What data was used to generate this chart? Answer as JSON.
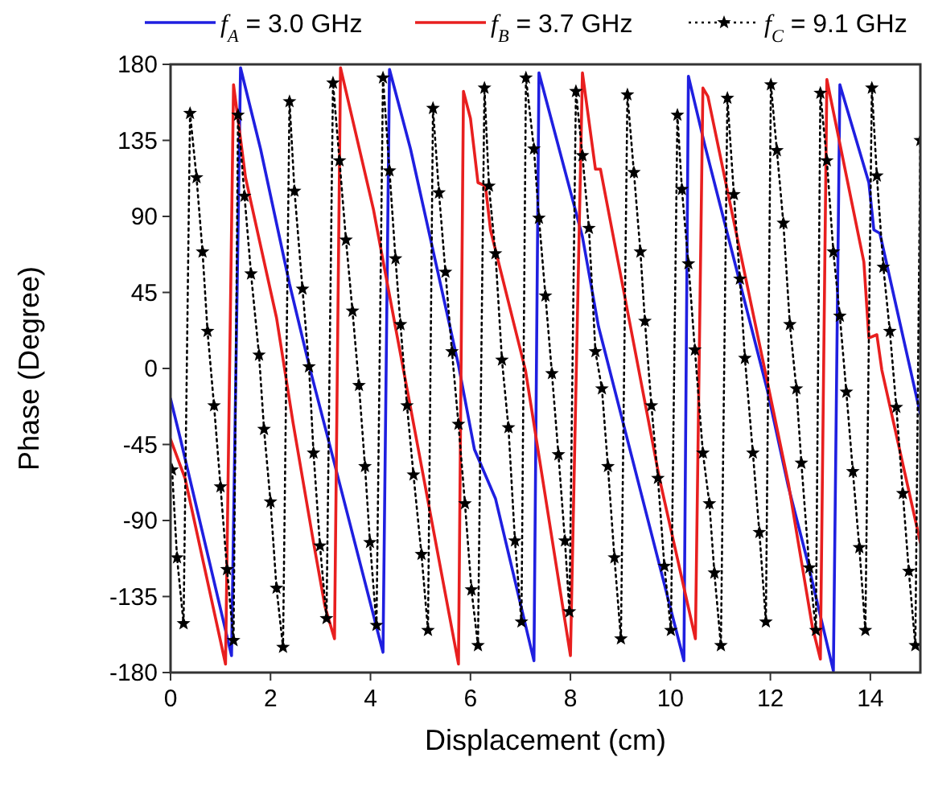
{
  "chart_data": {
    "type": "line",
    "xlabel": "Displacement (cm)",
    "ylabel": "Phase (Degree)",
    "xlim": [
      0,
      15
    ],
    "xticks": [
      0,
      2,
      4,
      6,
      8,
      10,
      12,
      14
    ],
    "ylim": [
      -180,
      180
    ],
    "yticks": [
      -180,
      -135,
      -90,
      -45,
      0,
      45,
      90,
      135,
      180
    ],
    "grid": false,
    "legend": "top",
    "series": [
      {
        "name": "f$_{A}$ = 3.0 GHz",
        "color": "#1f1fe0",
        "marker": "none",
        "line_style": "solid",
        "x": [
          0,
          0.2,
          1.22,
          1.4,
          1.8,
          2.38,
          2.77,
          3.19,
          4.25,
          4.38,
          4.8,
          5.76,
          6.08,
          6.5,
          7.27,
          7.37,
          8.24,
          8.56,
          10.27,
          10.36,
          10.69,
          11.94,
          12.36,
          12.75,
          13.26,
          13.39,
          13.97,
          14.07,
          14.19,
          15
        ],
        "values": [
          -18,
          -42,
          -170,
          178,
          130,
          50,
          2,
          -46,
          -168,
          177,
          130,
          2,
          -48,
          -77,
          -173,
          175,
          78,
          25,
          -173,
          173,
          132,
          -13,
          -70,
          -115,
          -179,
          168,
          110,
          82,
          80,
          -27
        ]
      },
      {
        "name": "f$_{B}$ = 3.7 GHz",
        "color": "#e81f1f",
        "marker": "none",
        "line_style": "solid",
        "x": [
          0,
          0.29,
          1.1,
          1.26,
          1.5,
          2.12,
          2.45,
          2.86,
          3.09,
          3.28,
          3.4,
          4.06,
          4.8,
          5.76,
          5.86,
          6.0,
          6.15,
          6.3,
          6.4,
          7.1,
          8.0,
          8.24,
          8.5,
          8.6,
          9.78,
          10.5,
          10.65,
          10.75,
          11.17,
          11.94,
          12.36,
          12.84,
          13.0,
          13.13,
          13.87,
          13.97,
          14.13,
          14.23,
          15
        ],
        "values": [
          -42,
          -65,
          -175,
          168,
          113,
          30,
          -32,
          -103,
          -141,
          -160,
          178,
          94,
          -23,
          -175,
          164,
          148,
          110,
          108,
          82,
          -1,
          -170,
          175,
          118,
          118,
          -65,
          -160,
          166,
          161,
          101,
          -8,
          -68,
          -153,
          -172,
          171,
          63,
          18,
          20,
          -1,
          -103
        ]
      },
      {
        "name": "f$_{C}$ = 9.1 GHz",
        "color": "#000000",
        "marker": "star",
        "line_style": "dotted",
        "x": [
          0.03,
          0.13,
          0.26,
          0.39,
          0.52,
          0.64,
          0.74,
          0.87,
          1.0,
          1.13,
          1.26,
          1.35,
          1.48,
          1.61,
          1.77,
          1.87,
          2.0,
          2.12,
          2.25,
          2.38,
          2.48,
          2.64,
          2.77,
          2.86,
          2.99,
          3.12,
          3.25,
          3.38,
          3.51,
          3.64,
          3.77,
          3.89,
          3.99,
          4.12,
          4.25,
          4.38,
          4.5,
          4.6,
          4.73,
          4.86,
          5.02,
          5.15,
          5.25,
          5.37,
          5.5,
          5.63,
          5.76,
          5.89,
          6.02,
          6.15,
          6.28,
          6.37,
          6.5,
          6.63,
          6.76,
          6.89,
          7.02,
          7.11,
          7.27,
          7.37,
          7.5,
          7.63,
          7.76,
          7.89,
          7.98,
          8.11,
          8.24,
          8.37,
          8.5,
          8.63,
          8.75,
          8.88,
          9.01,
          9.14,
          9.27,
          9.4,
          9.49,
          9.62,
          9.75,
          9.88,
          10.01,
          10.14,
          10.23,
          10.36,
          10.49,
          10.65,
          10.78,
          10.88,
          11.01,
          11.14,
          11.27,
          11.39,
          11.49,
          11.65,
          11.78,
          11.91,
          12.01,
          12.13,
          12.26,
          12.39,
          12.52,
          12.62,
          12.78,
          12.91,
          13.0,
          13.13,
          13.26,
          13.39,
          13.52,
          13.65,
          13.78,
          13.9,
          14.03,
          14.13,
          14.26,
          14.39,
          14.52,
          14.65,
          14.77,
          14.9,
          15.0
        ],
        "values": [
          -60,
          -112,
          -151,
          151,
          113,
          69,
          22,
          -22,
          -70,
          -119,
          -161,
          150,
          102,
          56,
          8,
          -36,
          -79,
          -130,
          -165,
          158,
          105,
          47,
          1,
          -50,
          -105,
          -148,
          169,
          123,
          76,
          34,
          -10,
          -58,
          -103,
          -152,
          172,
          117,
          65,
          26,
          -22,
          -63,
          -110,
          -155,
          154,
          104,
          57,
          10,
          -33,
          -80,
          -131,
          -164,
          166,
          108,
          68,
          5,
          -35,
          -102,
          -150,
          172,
          130,
          89,
          43,
          -3,
          -51,
          -102,
          -144,
          164,
          126,
          83,
          10,
          -12,
          -58,
          -112,
          -160,
          162,
          116,
          69,
          28,
          -22,
          -65,
          -117,
          -155,
          150,
          106,
          62,
          11,
          -50,
          -80,
          -121,
          -164,
          160,
          103,
          53,
          6,
          -50,
          -97,
          -150,
          168,
          129,
          86,
          26,
          -12,
          -56,
          -118,
          -155,
          163,
          123,
          69,
          31,
          -14,
          -61,
          -106,
          -155,
          166,
          114,
          60,
          22,
          -23,
          -74,
          -120,
          -164,
          135
        ]
      }
    ]
  }
}
